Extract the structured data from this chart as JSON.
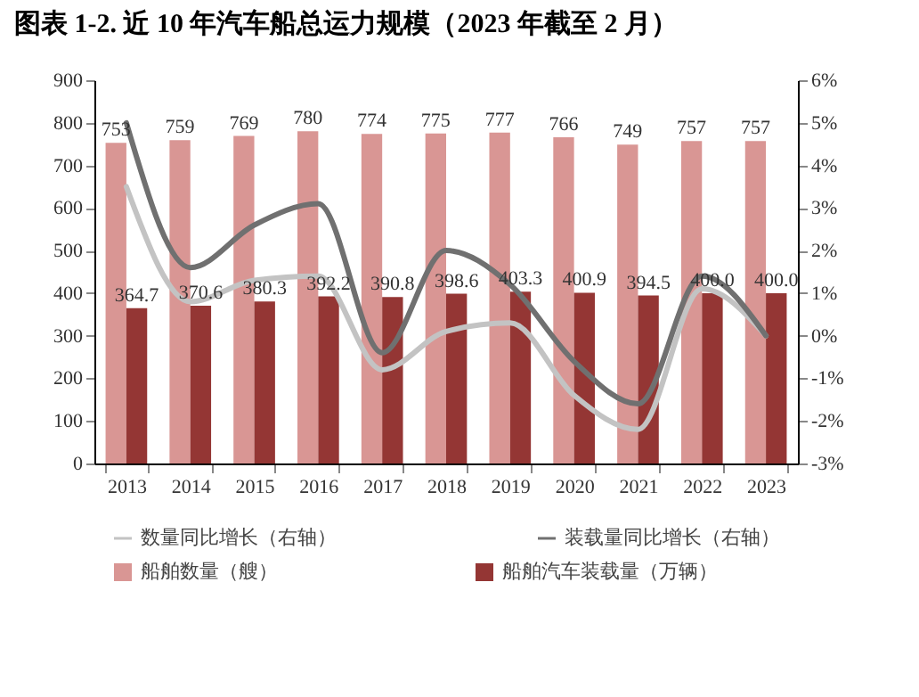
{
  "chart_data": {
    "type": "bar",
    "title": "图表 1-2. 近 10 年汽车船总运力规模（2023 年截至 2 月）",
    "categories": [
      "2013",
      "2014",
      "2015",
      "2016",
      "2017",
      "2018",
      "2019",
      "2020",
      "2021",
      "2022",
      "2023"
    ],
    "series": [
      {
        "name": "船舶数量（艘）",
        "color": "#d99694",
        "values": [
          753,
          759,
          769,
          780,
          774,
          775,
          777,
          766,
          749,
          757,
          757
        ],
        "value_labels": [
          "753",
          "759",
          "769",
          "780",
          "774",
          "775",
          "777",
          "766",
          "749",
          "757",
          "757"
        ]
      },
      {
        "name": "船舶汽车装载量（万辆）",
        "color": "#943634",
        "values": [
          364.7,
          370.6,
          380.3,
          392.2,
          390.8,
          398.6,
          403.3,
          400.9,
          394.5,
          400.0,
          400.0
        ],
        "value_labels": [
          "364.7",
          "370.6",
          "380.3",
          "392.2",
          "390.8",
          "398.6",
          "403.3",
          "400.9",
          "394.5",
          "400.0",
          "400.0"
        ]
      },
      {
        "name": "数量同比增长（右轴）",
        "type": "line",
        "axis": "y2",
        "color": "#c3c3c3",
        "values": [
          3.5,
          0.8,
          1.3,
          1.4,
          -0.8,
          0.1,
          0.3,
          -1.4,
          -2.2,
          1.1,
          0.0
        ]
      },
      {
        "name": "装载量同比增长（右轴）",
        "type": "line",
        "axis": "y2",
        "color": "#707070",
        "values": [
          5.0,
          1.6,
          2.6,
          3.1,
          -0.4,
          2.0,
          1.2,
          -0.6,
          -1.6,
          1.4,
          0.0
        ]
      }
    ],
    "ylim": [
      0,
      900
    ],
    "yticks": [
      0,
      100,
      200,
      300,
      400,
      500,
      600,
      700,
      800,
      900
    ],
    "y2lim": [
      -3,
      6
    ],
    "y2ticks": [
      {
        "value": -3,
        "label": "-3%"
      },
      {
        "value": -2,
        "label": "-2%"
      },
      {
        "value": -1,
        "label": "-1%"
      },
      {
        "value": 0,
        "label": "0%"
      },
      {
        "value": 1,
        "label": "1%"
      },
      {
        "value": 2,
        "label": "2%"
      },
      {
        "value": 3,
        "label": "3%"
      },
      {
        "value": 4,
        "label": "4%"
      },
      {
        "value": 5,
        "label": "5%"
      },
      {
        "value": 6,
        "label": "6%"
      }
    ],
    "legend": "bottom"
  }
}
